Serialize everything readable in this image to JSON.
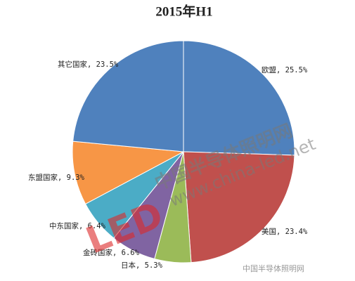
{
  "chart_data": {
    "type": "pie",
    "title": "2015年H1",
    "values": [
      25.5,
      23.4,
      5.3,
      6.6,
      6.4,
      9.3,
      23.5
    ],
    "value_labels": [
      "欧盟, 25.5%",
      "美国, 23.4%",
      "日本, 5.3%",
      "金砖国家, 6.6%",
      "中东国家, 6.4%",
      "东盟国家, 9.3%",
      "其它国家, 23.5%"
    ],
    "colors": [
      "#4f81bd",
      "#c0504d",
      "#9bbb59",
      "#8064a2",
      "#4bacc6",
      "#f79646",
      "#4f81bd"
    ]
  },
  "watermarks": [
    "LED",
    "中国半导体照明网",
    "www.china-led.net",
    "中国半导体照明网"
  ]
}
